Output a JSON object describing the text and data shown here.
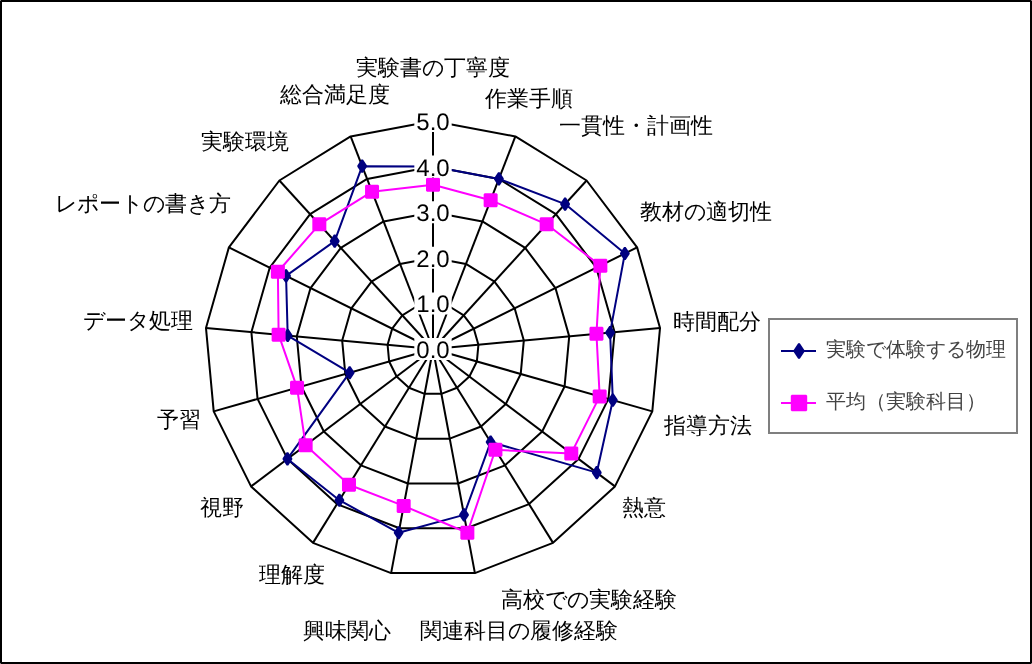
{
  "chart_data": {
    "type": "radar",
    "categories": [
      "実験書の丁寧度",
      "作業手順",
      "一貫性・計画性",
      "教材の適切性",
      "時間配分",
      "指導方法",
      "熱意",
      "高校での実験経験",
      "関連科目の履修経験",
      "興味関心",
      "理解度",
      "視野",
      "予習",
      "データ処理",
      "レポートの書き方",
      "実験環境",
      "総合満足度"
    ],
    "series": [
      {
        "name": "実験で体験する物理",
        "color": "#000080",
        "values": [
          4.0,
          4.0,
          4.3,
          4.7,
          3.9,
          4.1,
          4.5,
          2.4,
          3.7,
          4.1,
          3.9,
          4.0,
          1.9,
          3.2,
          3.6,
          3.2,
          4.3
        ]
      },
      {
        "name": "平均（実験科目）",
        "color": "#ff00ff",
        "marker": "square",
        "values": [
          3.6,
          3.5,
          3.7,
          4.1,
          3.6,
          3.8,
          3.8,
          2.6,
          4.1,
          3.5,
          3.5,
          3.5,
          3.1,
          3.4,
          3.8,
          3.7,
          3.7
        ]
      }
    ],
    "ylim": [
      0,
      5
    ],
    "yticks": [
      {
        "value": 0,
        "label": "0.0"
      },
      {
        "value": 1,
        "label": "1.0"
      },
      {
        "value": 2,
        "label": "2.0"
      },
      {
        "value": 3,
        "label": "3.0"
      },
      {
        "value": 4,
        "label": "4.0"
      },
      {
        "value": 5,
        "label": "5.0"
      }
    ],
    "legend": "right",
    "marker": "diamond",
    "line_style": "solid"
  }
}
